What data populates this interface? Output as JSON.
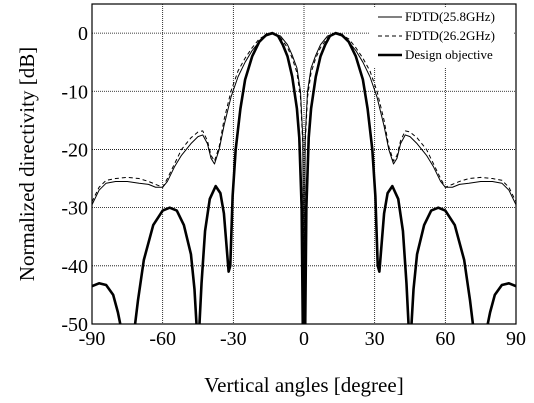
{
  "chart_data": {
    "type": "line",
    "xlabel": "Vertical angles [degree]",
    "ylabel": "Normalized directivity [dB]",
    "xlim": [
      -90,
      90
    ],
    "ylim": [
      -50,
      5
    ],
    "xticks": [
      -90,
      -60,
      -30,
      0,
      30,
      60,
      90
    ],
    "yticks": [
      0,
      -10,
      -20,
      -30,
      -40,
      -50
    ],
    "xtick_labels": [
      "-90",
      "-60",
      "-30",
      "0",
      "30",
      "60",
      "90"
    ],
    "ytick_labels": [
      "0",
      "-10",
      "-20",
      "-30",
      "-40",
      "-50"
    ],
    "grid": true,
    "legend_position": "top-right",
    "series": [
      {
        "name": "FDTD(25.8GHz)",
        "style": "solid-thin",
        "points": [
          [
            -90,
            -29.5
          ],
          [
            -87,
            -27
          ],
          [
            -84,
            -25.8
          ],
          [
            -80,
            -25.5
          ],
          [
            -75,
            -25.5
          ],
          [
            -70,
            -25.8
          ],
          [
            -66,
            -26
          ],
          [
            -63,
            -26.5
          ],
          [
            -60,
            -26.5
          ],
          [
            -58,
            -25.5
          ],
          [
            -55,
            -23
          ],
          [
            -52,
            -21
          ],
          [
            -48,
            -19
          ],
          [
            -45,
            -17.8
          ],
          [
            -43,
            -17.5
          ],
          [
            -41,
            -19
          ],
          [
            -39.5,
            -21.5
          ],
          [
            -38,
            -22.5
          ],
          [
            -36,
            -20
          ],
          [
            -34,
            -16
          ],
          [
            -31,
            -11
          ],
          [
            -28,
            -7.5
          ],
          [
            -25,
            -5
          ],
          [
            -22,
            -3
          ],
          [
            -19,
            -1.5
          ],
          [
            -16,
            -0.5
          ],
          [
            -13,
            -0.1
          ],
          [
            -10,
            -0.5
          ],
          [
            -7,
            -2
          ],
          [
            -5,
            -3.8
          ],
          [
            -3,
            -6
          ],
          [
            -1.5,
            -10
          ],
          [
            -0.5,
            -18
          ],
          [
            0,
            -50
          ],
          [
            0.5,
            -18
          ],
          [
            1.5,
            -10
          ],
          [
            3,
            -6
          ],
          [
            5,
            -3.8
          ],
          [
            7,
            -2
          ],
          [
            10,
            -0.5
          ],
          [
            13,
            -0.1
          ],
          [
            16,
            -0.5
          ],
          [
            19,
            -1.5
          ],
          [
            22,
            -3
          ],
          [
            25,
            -5
          ],
          [
            28,
            -7.5
          ],
          [
            31,
            -11
          ],
          [
            34,
            -16
          ],
          [
            36,
            -20
          ],
          [
            38,
            -22.5
          ],
          [
            39.5,
            -21.5
          ],
          [
            41,
            -19
          ],
          [
            43,
            -17.5
          ],
          [
            45,
            -17.8
          ],
          [
            48,
            -19
          ],
          [
            52,
            -21
          ],
          [
            55,
            -23
          ],
          [
            58,
            -25.5
          ],
          [
            60,
            -26.5
          ],
          [
            63,
            -26.5
          ],
          [
            66,
            -26
          ],
          [
            70,
            -25.8
          ],
          [
            75,
            -25.5
          ],
          [
            80,
            -25.5
          ],
          [
            84,
            -25.8
          ],
          [
            87,
            -27
          ],
          [
            90,
            -29.5
          ]
        ]
      },
      {
        "name": "FDTD(26.2GHz)",
        "style": "dashed",
        "points": [
          [
            -90,
            -29
          ],
          [
            -87,
            -26.5
          ],
          [
            -84,
            -25.3
          ],
          [
            -80,
            -25
          ],
          [
            -75,
            -24.8
          ],
          [
            -70,
            -25
          ],
          [
            -66,
            -25.5
          ],
          [
            -63,
            -26
          ],
          [
            -60,
            -26.5
          ],
          [
            -58,
            -25
          ],
          [
            -55,
            -22.5
          ],
          [
            -52,
            -20
          ],
          [
            -48,
            -18
          ],
          [
            -45,
            -17
          ],
          [
            -43,
            -16.8
          ],
          [
            -41,
            -18.5
          ],
          [
            -39.5,
            -21
          ],
          [
            -38,
            -22
          ],
          [
            -36,
            -19.5
          ],
          [
            -34,
            -15
          ],
          [
            -31,
            -10
          ],
          [
            -28,
            -6.5
          ],
          [
            -25,
            -4.3
          ],
          [
            -22,
            -2.5
          ],
          [
            -19,
            -1
          ],
          [
            -16,
            -0.3
          ],
          [
            -13,
            -0.1
          ],
          [
            -10,
            -0.8
          ],
          [
            -7,
            -2.5
          ],
          [
            -5,
            -4.3
          ],
          [
            -3,
            -6.8
          ],
          [
            -1.5,
            -11
          ],
          [
            -0.5,
            -19
          ],
          [
            0,
            -50
          ],
          [
            0.5,
            -19
          ],
          [
            1.5,
            -11
          ],
          [
            3,
            -6.8
          ],
          [
            5,
            -4.3
          ],
          [
            7,
            -2.5
          ],
          [
            10,
            -0.8
          ],
          [
            13,
            -0.1
          ],
          [
            16,
            -0.3
          ],
          [
            19,
            -1
          ],
          [
            22,
            -2.5
          ],
          [
            25,
            -4.3
          ],
          [
            28,
            -6.5
          ],
          [
            31,
            -10
          ],
          [
            34,
            -15
          ],
          [
            36,
            -19.5
          ],
          [
            38,
            -22
          ],
          [
            39.5,
            -21
          ],
          [
            41,
            -18.5
          ],
          [
            43,
            -16.8
          ],
          [
            45,
            -17
          ],
          [
            48,
            -18
          ],
          [
            52,
            -20
          ],
          [
            55,
            -22.5
          ],
          [
            58,
            -25
          ],
          [
            60,
            -26.5
          ],
          [
            63,
            -26
          ],
          [
            66,
            -25.5
          ],
          [
            70,
            -25
          ],
          [
            75,
            -24.8
          ],
          [
            80,
            -25
          ],
          [
            84,
            -25.3
          ],
          [
            87,
            -26.5
          ],
          [
            90,
            -29
          ]
        ]
      },
      {
        "name": "Design objective",
        "style": "solid-thick",
        "points": [
          [
            -90,
            -43.5
          ],
          [
            -87,
            -43
          ],
          [
            -84,
            -43.3
          ],
          [
            -81,
            -45
          ],
          [
            -79,
            -48
          ],
          [
            -77.5,
            -51
          ],
          [
            -72,
            -51
          ],
          [
            -70.5,
            -46
          ],
          [
            -68,
            -39
          ],
          [
            -64,
            -33
          ],
          [
            -60,
            -30.5
          ],
          [
            -57,
            -30
          ],
          [
            -54,
            -30.5
          ],
          [
            -51,
            -33
          ],
          [
            -48,
            -38
          ],
          [
            -46.5,
            -44
          ],
          [
            -45.5,
            -51
          ],
          [
            -44.5,
            -51
          ],
          [
            -43.5,
            -43
          ],
          [
            -42,
            -34
          ],
          [
            -40,
            -28.5
          ],
          [
            -37.5,
            -26.3
          ],
          [
            -35.5,
            -27.5
          ],
          [
            -34,
            -31
          ],
          [
            -33,
            -36
          ],
          [
            -32,
            -41
          ],
          [
            -31.3,
            -40
          ],
          [
            -30.3,
            -28
          ],
          [
            -29,
            -20
          ],
          [
            -27,
            -13
          ],
          [
            -25,
            -8
          ],
          [
            -22,
            -4
          ],
          [
            -19,
            -1.5
          ],
          [
            -16,
            -0.3
          ],
          [
            -13.5,
            0
          ],
          [
            -11,
            -0.5
          ],
          [
            -9,
            -2
          ],
          [
            -7,
            -4
          ],
          [
            -5,
            -7.5
          ],
          [
            -3,
            -13
          ],
          [
            -2,
            -18
          ],
          [
            -1,
            -30
          ],
          [
            -0.5,
            -51
          ],
          [
            0.5,
            -51
          ],
          [
            1,
            -30
          ],
          [
            2,
            -18
          ],
          [
            3,
            -13
          ],
          [
            5,
            -7.5
          ],
          [
            7,
            -4
          ],
          [
            9,
            -2
          ],
          [
            11,
            -0.5
          ],
          [
            13.5,
            0
          ],
          [
            16,
            -0.3
          ],
          [
            19,
            -1.5
          ],
          [
            22,
            -4
          ],
          [
            25,
            -8
          ],
          [
            27,
            -13
          ],
          [
            29,
            -20
          ],
          [
            30.3,
            -28
          ],
          [
            31.3,
            -40
          ],
          [
            32,
            -41
          ],
          [
            33,
            -36
          ],
          [
            34,
            -31
          ],
          [
            35.5,
            -27.5
          ],
          [
            37.5,
            -26.3
          ],
          [
            40,
            -28.5
          ],
          [
            42,
            -34
          ],
          [
            43.5,
            -43
          ],
          [
            44.5,
            -51
          ],
          [
            45.5,
            -51
          ],
          [
            46.5,
            -44
          ],
          [
            48,
            -38
          ],
          [
            51,
            -33
          ],
          [
            54,
            -30.5
          ],
          [
            57,
            -30
          ],
          [
            60,
            -30.5
          ],
          [
            64,
            -33
          ],
          [
            68,
            -39
          ],
          [
            70.5,
            -46
          ],
          [
            72,
            -51
          ],
          [
            77.5,
            -51
          ],
          [
            79,
            -48
          ],
          [
            81,
            -45
          ],
          [
            84,
            -43.3
          ],
          [
            87,
            -43
          ],
          [
            90,
            -43.5
          ]
        ]
      }
    ]
  }
}
